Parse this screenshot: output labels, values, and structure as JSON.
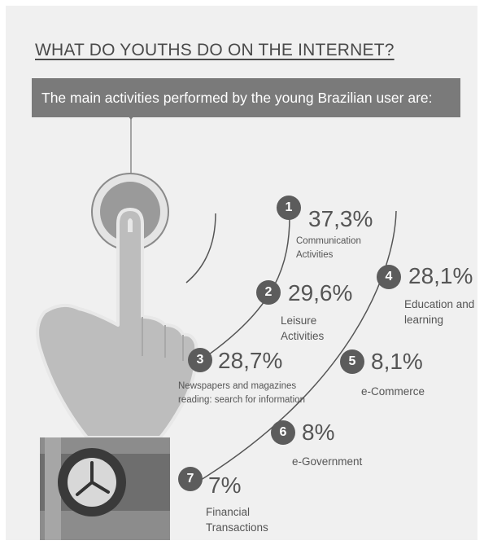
{
  "header": {
    "title": "WHAT DO YOUTHS DO ON THE INTERNET?",
    "subtitle": "The main activities performed by the young Brazilian user are:"
  },
  "items": [
    {
      "number": "1",
      "value": "37,3%",
      "label_line1": "Communication",
      "label_line2": "Activities"
    },
    {
      "number": "2",
      "value": "29,6%",
      "label_line1": "Leisure",
      "label_line2": "Activities"
    },
    {
      "number": "3",
      "value": "28,7%",
      "label_line1": "Newspapers and magazines",
      "label_line2": "reading: search for information"
    },
    {
      "number": "4",
      "value": "28,1%",
      "label_line1": "Education and",
      "label_line2": "learning"
    },
    {
      "number": "5",
      "value": "8,1%",
      "label_line1": "e-Commerce",
      "label_line2": ""
    },
    {
      "number": "6",
      "value": "8%",
      "label_line1": "e-Government",
      "label_line2": ""
    },
    {
      "number": "7",
      "value": "7%",
      "label_line1": "Financial",
      "label_line2": "Transactions"
    }
  ],
  "colors": {
    "background": "#f0f0f0",
    "banner": "#7a7a7a",
    "number_badge": "#5c5c5c",
    "hand": "#bdbdbd",
    "text": "#555555"
  },
  "icons": {
    "hand": "pointing-hand-icon",
    "watch": "wristwatch-icon",
    "button": "round-button-icon"
  }
}
